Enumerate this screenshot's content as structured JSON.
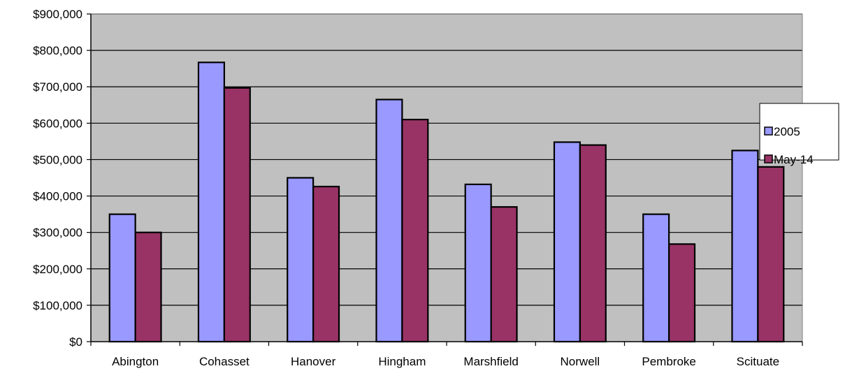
{
  "chart_data": {
    "type": "bar",
    "title": "",
    "xlabel": "",
    "ylabel": "",
    "categories": [
      "Abington",
      "Cohasset",
      "Hanover",
      "Hingham",
      "Marshfield",
      "Norwell",
      "Pembroke",
      "Scituate"
    ],
    "series": [
      {
        "name": "2005",
        "color": "#9999ff",
        "values": [
          350000,
          767000,
          450000,
          665000,
          432000,
          548000,
          350000,
          525000
        ]
      },
      {
        "name": "May-14",
        "color": "#993366",
        "values": [
          300000,
          697000,
          426000,
          610000,
          370000,
          540000,
          268000,
          480000
        ]
      }
    ],
    "ylim": [
      0,
      900000
    ],
    "yticks": [
      0,
      100000,
      200000,
      300000,
      400000,
      500000,
      600000,
      700000,
      800000,
      900000
    ],
    "ytick_labels": [
      "$0",
      "$100,000",
      "$200,000",
      "$300,000",
      "$400,000",
      "$500,000",
      "$600,000",
      "$700,000",
      "$800,000",
      "$900,000"
    ],
    "grid": true,
    "plot_background": "#c0c0c0",
    "legend": {
      "position": "right"
    }
  }
}
